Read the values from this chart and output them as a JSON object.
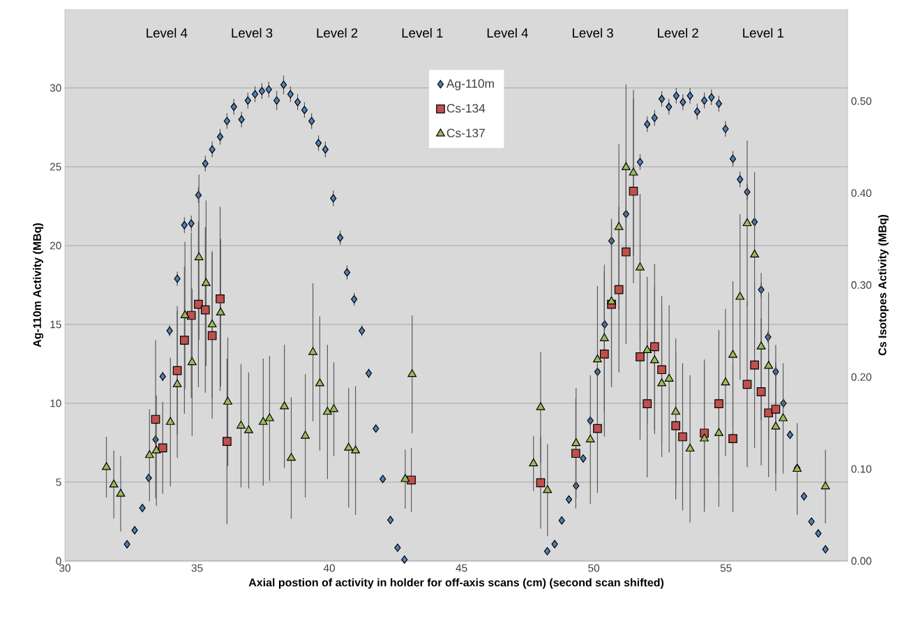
{
  "chart_data": {
    "type": "scatter",
    "xlabel": "Axial postion of activity in holder for off-axis scans (cm) (second scan shifted)",
    "ylabel": "Ag-110m Activity (MBq)",
    "y2label": "Cs Isotopes Activity (MBq)",
    "xlim": [
      30,
      59.6
    ],
    "xticks": [
      30,
      35,
      40,
      45,
      50,
      55
    ],
    "ylim": [
      0,
      35
    ],
    "yticks": [
      0,
      5,
      10,
      15,
      20,
      25,
      30
    ],
    "y2lim": [
      0,
      0.6
    ],
    "y2ticks": [
      {
        "value": 0,
        "label": "0.00"
      },
      {
        "value": 0.1,
        "label": "0.10"
      },
      {
        "value": 0.2,
        "label": "0.20"
      },
      {
        "value": 0.3,
        "label": "0.30"
      },
      {
        "value": 0.4,
        "label": "0.40"
      },
      {
        "value": 0.5,
        "label": "0.50"
      }
    ],
    "grid": "y",
    "legend": "top",
    "annotations": [
      "Level 4",
      "Level 3",
      "Level 2",
      "Level 1",
      "Level 4",
      "Level 3",
      "Level 2",
      "Level 1"
    ],
    "series": [
      {
        "name": "Ag-110m",
        "color": "#4f81bd",
        "marker": "diamond",
        "axis": "y",
        "x": [
          32.35,
          32.64,
          32.93,
          33.17,
          33.43,
          33.7,
          33.96,
          34.25,
          34.52,
          34.78,
          35.05,
          35.31,
          35.57,
          35.87,
          36.13,
          36.39,
          36.68,
          36.92,
          37.19,
          37.45,
          37.71,
          38.01,
          38.27,
          38.53,
          38.8,
          39.06,
          39.33,
          39.59,
          39.85,
          40.15,
          40.41,
          40.67,
          40.94,
          41.23,
          41.49,
          41.76,
          42.02,
          42.31,
          42.58,
          42.84,
          48.24,
          48.52,
          48.79,
          49.06,
          49.33,
          49.6,
          49.87,
          50.14,
          50.41,
          50.67,
          51.22,
          51.75,
          52.02,
          52.3,
          52.57,
          52.84,
          53.12,
          53.37,
          53.64,
          53.91,
          54.18,
          54.45,
          54.73,
          54.98,
          55.26,
          55.53,
          55.8,
          56.08,
          56.33,
          56.59,
          56.88,
          57.17,
          57.42,
          57.69,
          57.95,
          58.23,
          58.49,
          58.76
        ],
        "values": [
          1.06,
          1.95,
          3.36,
          5.27,
          7.7,
          11.7,
          14.6,
          17.9,
          21.3,
          21.4,
          23.2,
          25.2,
          26.1,
          26.9,
          27.9,
          28.8,
          28.0,
          29.2,
          29.6,
          29.8,
          29.9,
          29.2,
          30.2,
          29.6,
          29.1,
          28.6,
          27.9,
          26.5,
          26.1,
          23.0,
          20.5,
          18.3,
          16.6,
          14.6,
          11.9,
          8.4,
          5.2,
          2.6,
          0.84,
          0.09,
          0.62,
          1.07,
          2.57,
          3.9,
          4.77,
          6.5,
          8.9,
          12.0,
          15.0,
          20.3,
          22.0,
          25.3,
          27.7,
          28.1,
          29.3,
          28.8,
          29.5,
          29.1,
          29.5,
          28.5,
          29.2,
          29.4,
          29.0,
          27.4,
          25.5,
          24.2,
          23.4,
          21.5,
          17.2,
          14.2,
          12.0,
          10.0,
          8.0,
          5.9,
          4.1,
          2.5,
          1.75,
          0.74
        ],
        "errors": [
          0.1,
          0.1,
          0.15,
          0.2,
          0.3,
          0.3,
          0.35,
          0.45,
          0.5,
          0.5,
          0.5,
          0.5,
          0.5,
          0.5,
          0.5,
          0.5,
          0.5,
          0.5,
          0.5,
          0.5,
          0.5,
          0.6,
          0.6,
          0.5,
          0.5,
          0.5,
          0.5,
          0.5,
          0.5,
          0.5,
          0.45,
          0.45,
          0.4,
          0.35,
          0.3,
          0.2,
          0.15,
          0.1,
          0.1,
          0.1,
          0.1,
          0.1,
          0.1,
          0.1,
          0.15,
          0.2,
          0.3,
          0.3,
          0.35,
          0.5,
          0.5,
          0.5,
          0.5,
          0.5,
          0.5,
          0.5,
          0.5,
          0.5,
          0.5,
          0.5,
          0.5,
          0.5,
          0.5,
          0.5,
          0.5,
          0.5,
          0.5,
          0.5,
          0.45,
          0.4,
          0.35,
          0.3,
          0.2,
          0.15,
          0.1,
          0.1,
          0.1,
          0.1
        ]
      },
      {
        "name": "Cs-134",
        "color": "#c0504d",
        "marker": "square",
        "axis": "y2",
        "x": [
          33.43,
          33.7,
          34.25,
          34.52,
          34.78,
          35.05,
          35.31,
          35.57,
          35.87,
          36.13,
          43.1,
          47.99,
          49.32,
          50.14,
          50.4,
          50.67,
          50.95,
          51.22,
          51.5,
          51.75,
          52.02,
          52.3,
          52.57,
          53.1,
          53.36,
          54.18,
          54.73,
          55.26,
          55.8,
          56.08,
          56.33,
          56.61,
          56.88
        ],
        "values": [
          0.154,
          0.123,
          0.207,
          0.24,
          0.267,
          0.279,
          0.273,
          0.245,
          0.285,
          0.13,
          0.088,
          0.085,
          0.117,
          0.144,
          0.225,
          0.279,
          0.295,
          0.336,
          0.402,
          0.222,
          0.171,
          0.233,
          0.208,
          0.147,
          0.135,
          0.139,
          0.171,
          0.133,
          0.192,
          0.213,
          0.184,
          0.161,
          0.165
        ],
        "errors": [
          0.086,
          0.05,
          0.07,
          0.08,
          0.09,
          0.09,
          0.09,
          0.09,
          0.1,
          0.09,
          0.035,
          0.05,
          0.06,
          0.07,
          0.09,
          0.09,
          0.09,
          0.1,
          0.1,
          0.09,
          0.08,
          0.09,
          0.08,
          0.08,
          0.08,
          0.08,
          0.08,
          0.08,
          0.09,
          0.09,
          0.08,
          0.07,
          0.07
        ]
      },
      {
        "name": "Cs-137",
        "color": "#9bbb59",
        "marker": "triangle",
        "axis": "y2",
        "x": [
          31.57,
          31.85,
          32.11,
          33.2,
          33.46,
          33.99,
          34.25,
          34.54,
          34.81,
          35.07,
          35.34,
          35.57,
          35.89,
          36.16,
          36.66,
          36.95,
          37.5,
          37.74,
          38.3,
          38.56,
          39.09,
          39.38,
          39.64,
          39.93,
          40.17,
          40.73,
          40.99,
          42.87,
          43.13,
          47.72,
          47.99,
          48.25,
          49.33,
          49.87,
          50.14,
          50.4,
          50.67,
          50.95,
          51.22,
          51.5,
          51.75,
          52.02,
          52.3,
          52.57,
          52.85,
          53.1,
          53.64,
          54.18,
          54.73,
          54.98,
          55.26,
          55.53,
          55.8,
          56.08,
          56.33,
          56.61,
          56.88,
          57.16,
          57.69,
          58.76
        ],
        "values": [
          0.102,
          0.083,
          0.073,
          0.115,
          0.12,
          0.151,
          0.192,
          0.267,
          0.216,
          0.33,
          0.302,
          0.257,
          0.27,
          0.173,
          0.147,
          0.142,
          0.151,
          0.155,
          0.168,
          0.112,
          0.136,
          0.227,
          0.193,
          0.162,
          0.165,
          0.123,
          0.12,
          0.089,
          0.203,
          0.106,
          0.167,
          0.077,
          0.128,
          0.132,
          0.219,
          0.242,
          0.282,
          0.363,
          0.428,
          0.422,
          0.319,
          0.229,
          0.218,
          0.193,
          0.198,
          0.162,
          0.122,
          0.133,
          0.139,
          0.194,
          0.224,
          0.287,
          0.367,
          0.333,
          0.233,
          0.212,
          0.146,
          0.155,
          0.1,
          0.081
        ],
        "errors": [
          0.033,
          0.037,
          0.041,
          0.05,
          0.06,
          0.07,
          0.08,
          0.08,
          0.08,
          0.09,
          0.09,
          0.08,
          0.08,
          0.07,
          0.067,
          0.063,
          0.069,
          0.068,
          0.067,
          0.066,
          0.067,
          0.075,
          0.073,
          0.073,
          0.051,
          0.065,
          0.07,
          0.032,
          0.064,
          0.03,
          0.06,
          0.05,
          0.06,
          0.07,
          0.08,
          0.08,
          0.09,
          0.09,
          0.09,
          0.09,
          0.08,
          0.08,
          0.08,
          0.08,
          0.08,
          0.08,
          0.08,
          0.08,
          0.08,
          0.08,
          0.08,
          0.09,
          0.09,
          0.09,
          0.08,
          0.08,
          0.07,
          0.06,
          0.05,
          0.04
        ]
      }
    ]
  }
}
